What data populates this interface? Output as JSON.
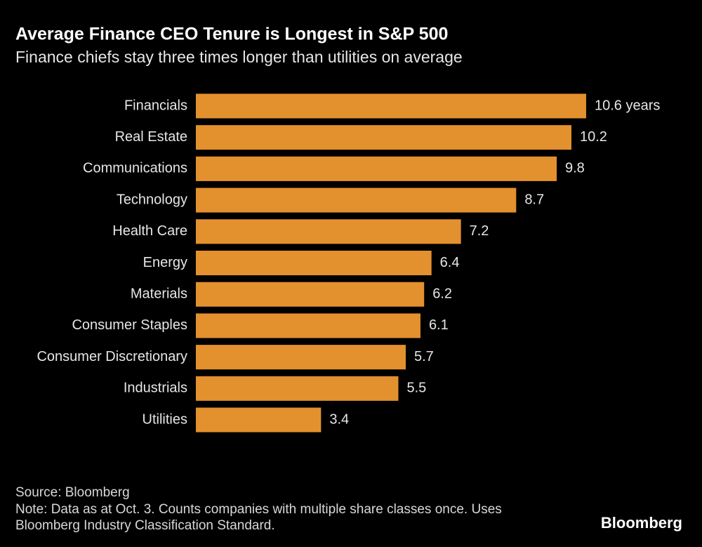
{
  "chart_data": {
    "type": "bar",
    "orientation": "horizontal",
    "title": "Average Finance CEO Tenure is Longest in S&P 500",
    "subtitle": "Finance chiefs stay three times longer than utilities on average",
    "categories": [
      "Financials",
      "Real Estate",
      "Communications",
      "Technology",
      "Health Care",
      "Energy",
      "Materials",
      "Consumer Staples",
      "Consumer Discretionary",
      "Industrials",
      "Utilities"
    ],
    "values": [
      10.6,
      10.2,
      9.8,
      8.7,
      7.2,
      6.4,
      6.2,
      6.1,
      5.7,
      5.5,
      3.4
    ],
    "value_labels": [
      "10.6 years",
      "10.2",
      "9.8",
      "8.7",
      "7.2",
      "6.4",
      "6.2",
      "6.1",
      "5.7",
      "5.5",
      "3.4"
    ],
    "color": "#e3902e",
    "source": "Source: Bloomberg",
    "note": "Note: Data as at Oct. 3. Counts companies with multiple share classes once. Uses Bloomberg Industry Classification Standard.",
    "logo": "Bloomberg"
  }
}
